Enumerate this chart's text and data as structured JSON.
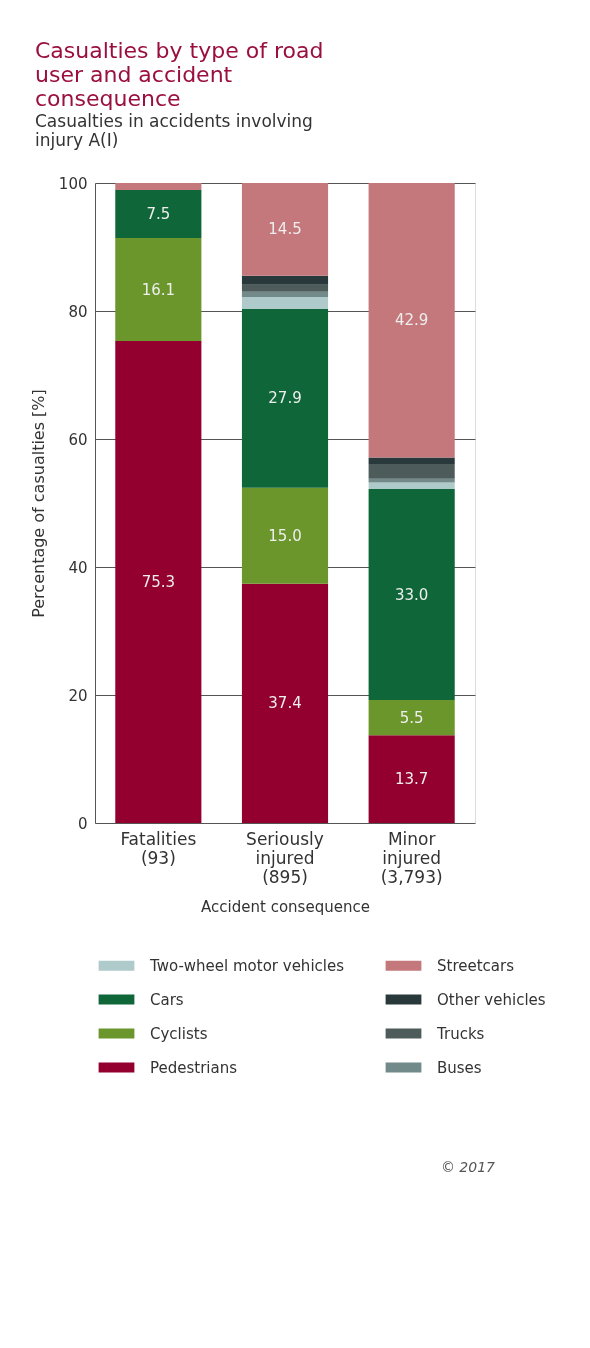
{
  "chart_data": {
    "type": "bar",
    "stacked": true,
    "title": "Casualties by type of road user and accident consequence",
    "subtitle": "Casualties in accidents involving injury A(I)",
    "xlabel": "Accident consequence",
    "ylabel": "Percentage of casualties [%]",
    "categories": [
      "Fatalities (93)",
      "Seriously injured (895)",
      "Minor injured (3,793)"
    ],
    "series": [
      {
        "name": "Pedestrians",
        "color": "#93002f",
        "values": [
          75.3,
          37.4,
          13.7
        ],
        "value_labels": [
          "75.3",
          "37.4",
          "13.7"
        ]
      },
      {
        "name": "Cyclists",
        "color": "#6b962b",
        "values": [
          16.1,
          15.0,
          5.5
        ],
        "value_labels": [
          "16.1",
          "15.0",
          "5.5"
        ]
      },
      {
        "name": "Cars",
        "color": "#0f6638",
        "values": [
          7.5,
          27.9,
          33.0
        ],
        "value_labels": [
          "7.5",
          "27.9",
          "33.0"
        ]
      },
      {
        "name": "Two-wheel motor vehicles",
        "color": "#afcaca",
        "values": [
          0,
          1.9,
          1.0
        ]
      },
      {
        "name": "Buses",
        "color": "#728a89",
        "values": [
          0,
          0.8,
          0.6
        ]
      },
      {
        "name": "Trucks",
        "color": "#4d5c5b",
        "values": [
          0,
          1.1,
          2.3
        ]
      },
      {
        "name": "Other vehicles",
        "color": "#29383a",
        "values": [
          0,
          1.4,
          1.0
        ]
      },
      {
        "name": "Streetcars",
        "color": "#c4787b",
        "values": [
          1.1,
          14.5,
          42.9
        ],
        "value_labels": [
          null,
          "14.5",
          "42.9"
        ]
      }
    ],
    "ylim": [
      0,
      100
    ],
    "yticks": [
      0,
      20,
      40,
      60,
      80,
      100
    ],
    "grid": "y",
    "legend": "bottom",
    "annotations": [
      "© 2017"
    ]
  }
}
